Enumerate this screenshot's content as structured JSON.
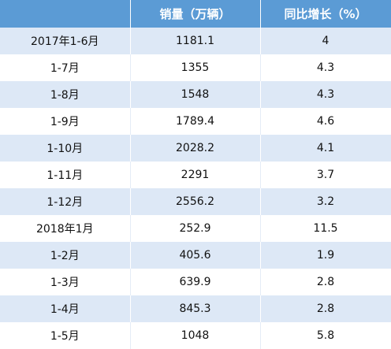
{
  "table": {
    "header": [
      "销量（万辆）",
      "同比增长（%）"
    ],
    "rows": [
      [
        "2017年1-6月",
        "1181.1",
        "4"
      ],
      [
        "1-7月",
        "1355",
        "4.3"
      ],
      [
        "1-8月",
        "1548",
        "4.3"
      ],
      [
        "1-9月",
        "1789.4",
        "4.6"
      ],
      [
        "1-10月",
        "2028.2",
        "4.1"
      ],
      [
        "1-11月",
        "2291",
        "3.7"
      ],
      [
        "1-12月",
        "2556.2",
        "3.2"
      ],
      [
        "2018年1月",
        "252.9",
        "11.5"
      ],
      [
        "1-2月",
        "405.6",
        "1.9"
      ],
      [
        "1-3月",
        "639.9",
        "2.8"
      ],
      [
        "1-4月",
        "845.3",
        "2.8"
      ],
      [
        "1-5月",
        "1048",
        "5.8"
      ]
    ]
  }
}
